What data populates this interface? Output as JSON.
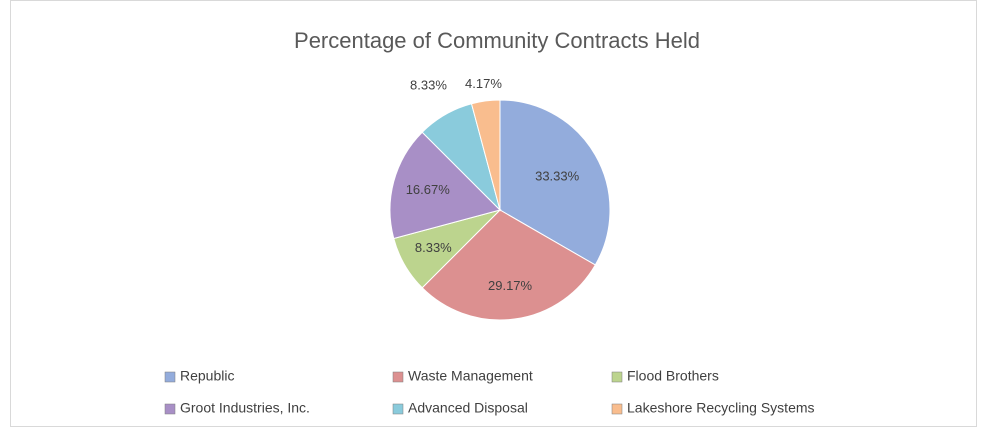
{
  "chart_data": {
    "type": "pie",
    "title": "Percentage of Community Contracts Held",
    "categories": [
      "Republic",
      "Waste Management",
      "Flood Brothers",
      "Groot Industries, Inc.",
      "Advanced Disposal",
      "Lakeshore Recycling Systems"
    ],
    "values": [
      33.33,
      29.17,
      8.33,
      16.67,
      8.33,
      4.17
    ],
    "value_labels": [
      "33.33%",
      "29.17%",
      "8.33%",
      "16.67%",
      "8.33%",
      "4.17%"
    ],
    "colors": [
      "#93acdc",
      "#dc9090",
      "#bcd48e",
      "#a88fc6",
      "#8acbdc",
      "#f9bd8e"
    ],
    "legend": "bottom"
  }
}
